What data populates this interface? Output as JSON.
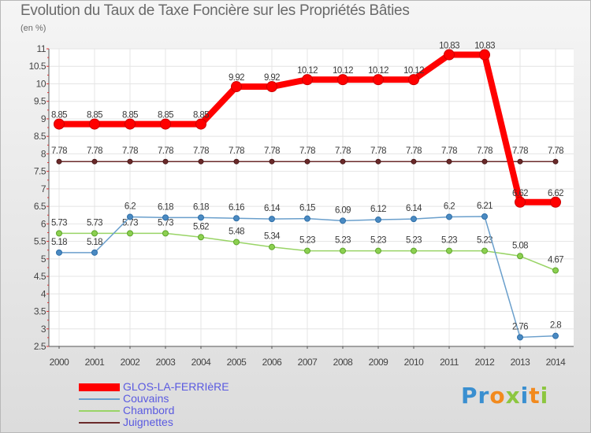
{
  "page": {
    "title": "Evolution du Taux de Taxe Foncière sur les Propriétés Bâties",
    "subtitle": "(en %)"
  },
  "chart_data": {
    "type": "line",
    "title": "Evolution du Taux de Taxe Foncière sur les Propriétés Bâties",
    "ylabel": "(en %)",
    "xlabel": "",
    "ylim": [
      2.5,
      11
    ],
    "yticks": [
      "2.5",
      "3",
      "3.5",
      "4",
      "4.5",
      "5",
      "5.5",
      "6",
      "6.5",
      "7",
      "7.5",
      "8",
      "8.5",
      "9",
      "9.5",
      "10",
      "10.5",
      "11"
    ],
    "x": [
      "2000",
      "2001",
      "2002",
      "2003",
      "2004",
      "2005",
      "2006",
      "2007",
      "2008",
      "2009",
      "2010",
      "2011",
      "2012",
      "2013",
      "2014"
    ],
    "legend_position": "bottom-left",
    "series": [
      {
        "name": "Juignettes",
        "color": "#6b2a2a",
        "values": [
          7.78,
          7.78,
          7.78,
          7.78,
          7.78,
          7.78,
          7.78,
          7.78,
          7.78,
          7.78,
          7.78,
          7.78,
          7.78,
          7.78,
          7.78
        ],
        "labels": [
          "7.78",
          "7.78",
          "7.78",
          "7.78",
          "7.78",
          "7.78",
          "7.78",
          "7.78",
          "7.78",
          "7.78",
          "7.78",
          "7.78",
          "7.78",
          "7.78",
          "7.78"
        ]
      },
      {
        "name": "Chambord",
        "color": "#99d466",
        "values": [
          5.73,
          5.73,
          5.73,
          5.73,
          5.62,
          5.48,
          5.34,
          5.23,
          5.23,
          5.23,
          5.23,
          5.23,
          5.23,
          5.08,
          4.67
        ],
        "labels": [
          "5.73",
          "5.73",
          "5.73",
          "5.73",
          "5.62",
          "5.48",
          "5.34",
          "5.23",
          "5.23",
          "5.23",
          "5.23",
          "5.23",
          "5.23",
          "5.08",
          "4.67"
        ]
      },
      {
        "name": "Couvains",
        "color": "#6a9fcc",
        "values": [
          5.18,
          5.18,
          6.2,
          6.18,
          6.18,
          6.16,
          6.14,
          6.15,
          6.09,
          6.12,
          6.14,
          6.2,
          6.21,
          2.76,
          2.8
        ],
        "labels": [
          "5.18",
          "5.18",
          "6.2",
          "6.18",
          "6.18",
          "6.16",
          "6.14",
          "6.15",
          "6.09",
          "6.12",
          "6.14",
          "6.2",
          "6.21",
          "2.76",
          "2.8"
        ]
      },
      {
        "name": "GLOS-LA-FERRIèRE",
        "color": "#ff0000",
        "values": [
          8.85,
          8.85,
          8.85,
          8.85,
          8.85,
          9.92,
          9.92,
          10.12,
          10.12,
          10.12,
          10.12,
          10.83,
          10.83,
          6.62,
          6.62
        ],
        "labels": [
          "8.85",
          "8.85",
          "8.85",
          "8.85",
          "8.85",
          "9.92",
          "9.92",
          "10.12",
          "10.12",
          "10.12",
          "10.12",
          "10.83",
          "10.83",
          "6.62",
          "6.62"
        ]
      }
    ]
  },
  "legend": {
    "items": [
      {
        "name": "GLOS-LA-FERRIèRE",
        "color": "#ff0000",
        "text_color": "#5a5ae0"
      },
      {
        "name": "Couvains",
        "color": "#6a9fcc",
        "text_color": "#5a5ae0"
      },
      {
        "name": "Chambord",
        "color": "#99d466",
        "text_color": "#5a5ae0"
      },
      {
        "name": "Juignettes",
        "color": "#6b2a2a",
        "text_color": "#5a5ae0"
      }
    ]
  },
  "logo": {
    "text": "Proxiti",
    "letters": [
      {
        "ch": "P",
        "color": "#3a8fd0"
      },
      {
        "ch": "r",
        "color": "#3a8fd0"
      },
      {
        "ch": "o",
        "color": "#f28a1e"
      },
      {
        "ch": "x",
        "color": "#8cc63f"
      },
      {
        "ch": "i",
        "color": "#3a8fd0"
      },
      {
        "ch": "t",
        "color": "#f28a1e"
      },
      {
        "ch": "i",
        "color": "#8cc63f"
      }
    ]
  }
}
